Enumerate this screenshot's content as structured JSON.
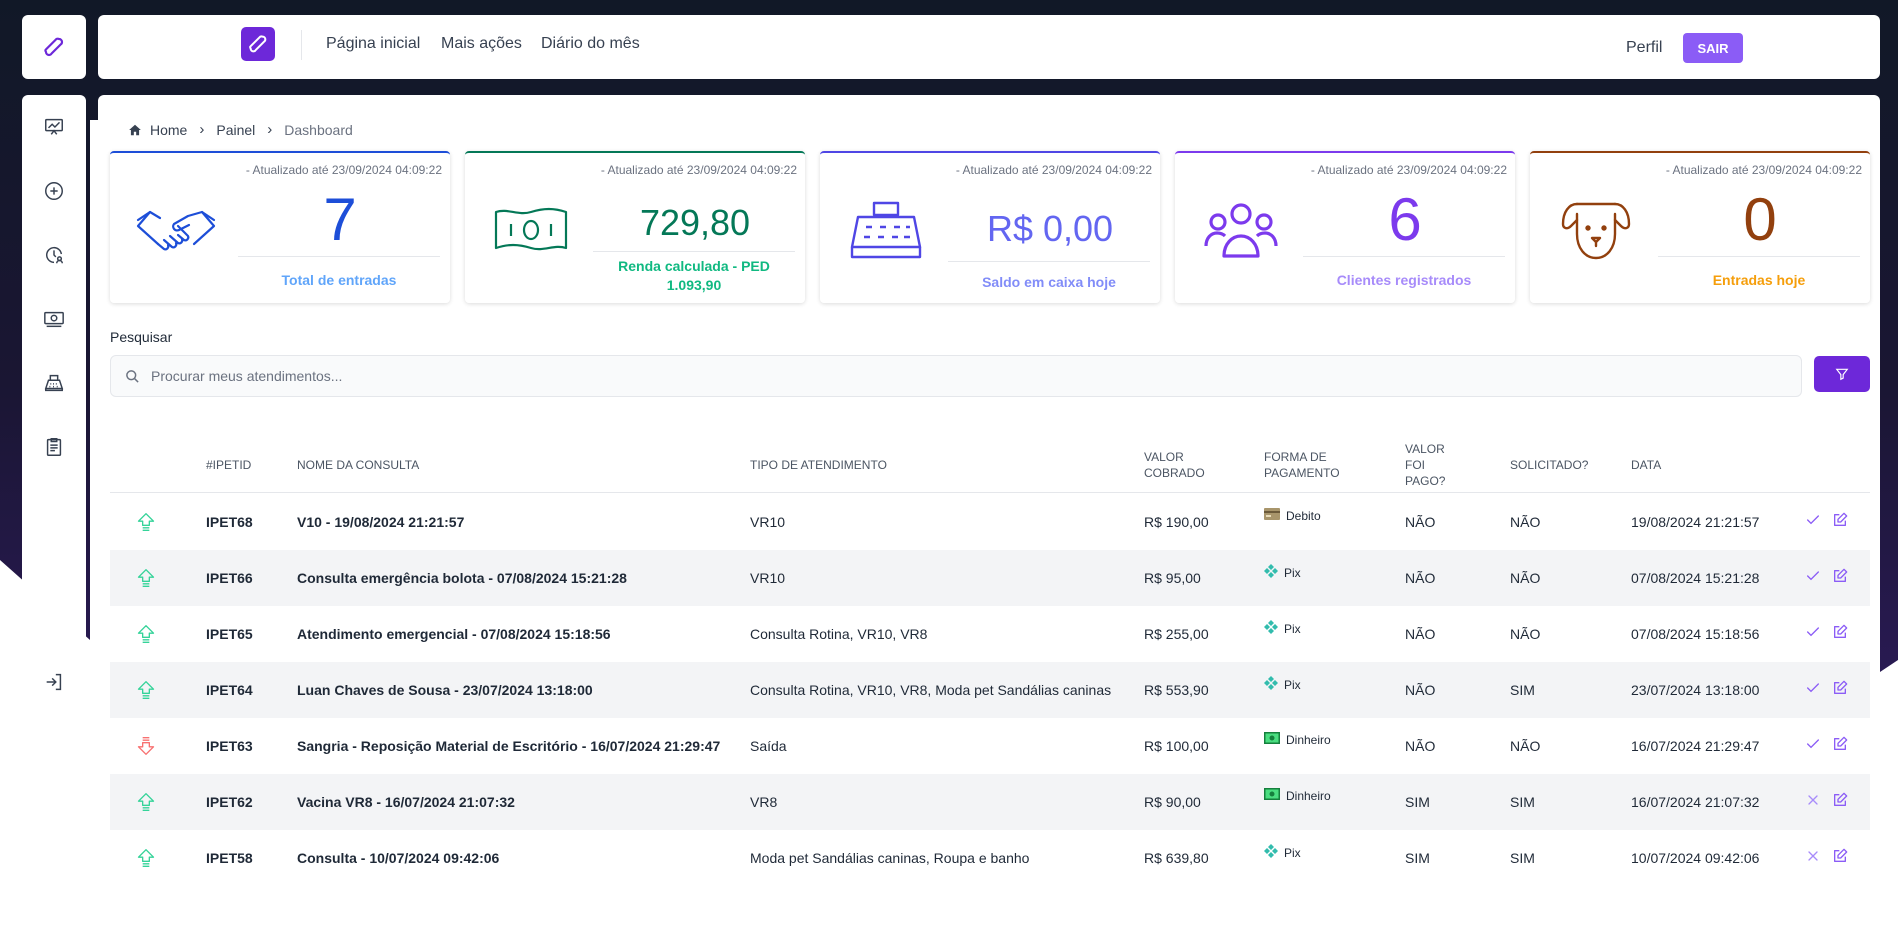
{
  "topbar": {
    "nav": [
      "Página inicial",
      "Mais ações",
      "Diário do mês"
    ],
    "profile": "Perfil",
    "logout": "SAIR"
  },
  "sidebar": {
    "logo_icon": "bone-icon",
    "items": [
      {
        "icon": "chart-icon"
      },
      {
        "icon": "plus-circle-icon"
      },
      {
        "icon": "clock-user-icon"
      },
      {
        "icon": "money-icon"
      },
      {
        "icon": "cash-register-icon"
      },
      {
        "icon": "clipboard-icon"
      }
    ],
    "logout_icon": "logout-icon"
  },
  "breadcrumb": [
    "Home",
    "Painel",
    "Dashboard"
  ],
  "cards": [
    {
      "updated": "- Atualizado até 23/09/2024 04:09:22",
      "value": "7",
      "label": "Total de entradas",
      "label2": "",
      "color": "#1d4ed8",
      "label_color": "#60a5fa",
      "icon": "handshake-icon"
    },
    {
      "updated": "- Atualizado até 23/09/2024 04:09:22",
      "value": "729,80",
      "label": "Renda calculada - PED",
      "label2": "1.093,90",
      "color": "#047857",
      "label_color": "#10b981",
      "icon": "money-bill-icon"
    },
    {
      "updated": "- Atualizado até 23/09/2024 04:09:22",
      "value": "R$ 0,00",
      "label": "Saldo em caixa hoje",
      "label2": "",
      "color": "#4f46e5",
      "label_color": "#818cf8",
      "icon": "cash-register-icon"
    },
    {
      "updated": "- Atualizado até 23/09/2024 04:09:22",
      "value": "6",
      "label": "Clientes registrados",
      "label2": "",
      "color": "#7c3aed",
      "label_color": "#a78bfa",
      "icon": "users-icon"
    },
    {
      "updated": "- Atualizado até 23/09/2024 04:09:22",
      "value": "0",
      "label": "Entradas hoje",
      "label2": "",
      "color": "#92400e",
      "label_color": "#f59e0b",
      "icon": "dog-icon"
    }
  ],
  "search": {
    "label": "Pesquisar",
    "placeholder": "Procurar meus atendimentos..."
  },
  "table": {
    "headers": {
      "id": "#IPETID",
      "name": "NOME DA CONSULTA",
      "type": "TIPO DE ATENDIMENTO",
      "value_l1": "VALOR",
      "value_l2": "COBRADO",
      "pay_l1": "FORMA DE",
      "pay_l2": "PAGAMENTO",
      "paid_l1": "VALOR",
      "paid_l2": "FOI",
      "paid_l3": "PAGO?",
      "req": "SOLICITADO?",
      "date": "DATA"
    },
    "rows": [
      {
        "dir": "in",
        "id": "IPET68",
        "name": "V10 - 19/08/2024 21:21:57",
        "type": "VR10",
        "value": "R$ 190,00",
        "payment": "Debito",
        "pay_icon": "card-icon",
        "paid": "NÃO",
        "requested": "NÃO",
        "date": "19/08/2024 21:21:57",
        "done": true
      },
      {
        "dir": "in",
        "id": "IPET66",
        "name": "Consulta emergência bolota - 07/08/2024 15:21:28",
        "type": "VR10",
        "value": "R$ 95,00",
        "payment": "Pix",
        "pay_icon": "pix-icon",
        "paid": "NÃO",
        "requested": "NÃO",
        "date": "07/08/2024 15:21:28",
        "done": true
      },
      {
        "dir": "in",
        "id": "IPET65",
        "name": "Atendimento emergencial - 07/08/2024 15:18:56",
        "type": "Consulta Rotina, VR10, VR8",
        "value": "R$ 255,00",
        "payment": "Pix",
        "pay_icon": "pix-icon",
        "paid": "NÃO",
        "requested": "NÃO",
        "date": "07/08/2024 15:18:56",
        "done": true
      },
      {
        "dir": "in",
        "id": "IPET64",
        "name": "Luan Chaves de Sousa - 23/07/2024 13:18:00",
        "type": "Consulta Rotina, VR10, VR8, Moda pet Sandálias caninas",
        "value": "R$ 553,90",
        "payment": "Pix",
        "pay_icon": "pix-icon",
        "paid": "NÃO",
        "requested": "SIM",
        "date": "23/07/2024 13:18:00",
        "done": true
      },
      {
        "dir": "out",
        "id": "IPET63",
        "name": "Sangria - Reposição Material de Escritório - 16/07/2024 21:29:47",
        "type": "Saída",
        "value": "R$ 100,00",
        "payment": "Dinheiro",
        "pay_icon": "cash-icon",
        "paid": "NÃO",
        "requested": "NÃO",
        "date": "16/07/2024 21:29:47",
        "done": true
      },
      {
        "dir": "in",
        "id": "IPET62",
        "name": "Vacina VR8 - 16/07/2024 21:07:32",
        "type": "VR8",
        "value": "R$ 90,00",
        "payment": "Dinheiro",
        "pay_icon": "cash-icon",
        "paid": "SIM",
        "requested": "SIM",
        "date": "16/07/2024 21:07:32",
        "done": false
      },
      {
        "dir": "in",
        "id": "IPET58",
        "name": "Consulta - 10/07/2024 09:42:06",
        "type": "Moda pet Sandálias caninas, Roupa e banho",
        "value": "R$ 639,80",
        "payment": "Pix",
        "pay_icon": "pix-icon",
        "paid": "SIM",
        "requested": "SIM",
        "date": "10/07/2024 09:42:06",
        "done": false
      }
    ]
  }
}
